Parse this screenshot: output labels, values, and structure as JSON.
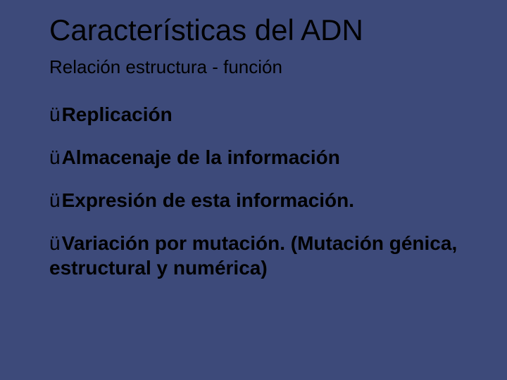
{
  "slide": {
    "background_color": "#3d4a7a",
    "text_color": "#000000",
    "title": "Características del ADN",
    "title_fontsize": 42,
    "title_fontweight": 400,
    "subtitle": "Relación estructura - función",
    "subtitle_fontsize": 26,
    "subtitle_fontweight": 400,
    "bullet_marker": "ü",
    "bullet_fontsize": 28,
    "bullet_fontweight": 700,
    "bullets": [
      "Replicación",
      "Almacenaje de la información",
      "Expresión de esta información.",
      "Variación por mutación. (Mutación génica, estructural y numérica)"
    ]
  }
}
